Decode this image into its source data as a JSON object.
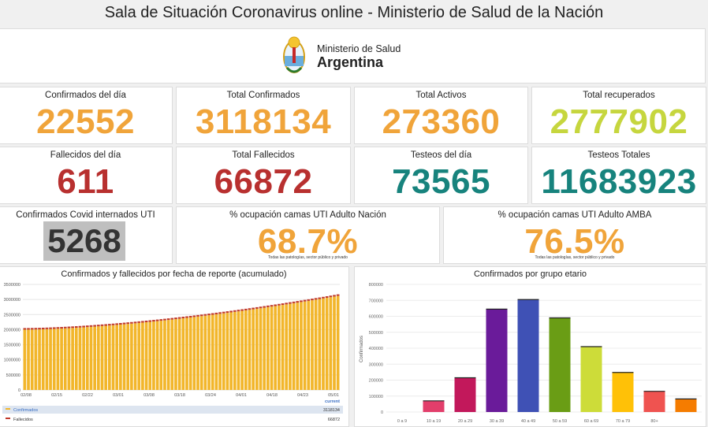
{
  "page_title": "Sala de Situación Coronavirus online - Ministerio de Salud de la Nación",
  "logo": {
    "subtitle": "Ministerio de Salud",
    "country": "Argentina"
  },
  "colors": {
    "orange": "#f0a43a",
    "lime": "#c6d63e",
    "red": "#b8302f",
    "teal": "#17837d",
    "bar_yellow": "#f2b62b",
    "bar_red": "#c0392b"
  },
  "stats": {
    "confirmados_dia": {
      "label": "Confirmados del día",
      "value": "22552"
    },
    "total_confirmados": {
      "label": "Total Confirmados",
      "value": "3118134"
    },
    "total_activos": {
      "label": "Total Activos",
      "value": "273360"
    },
    "total_recuperados": {
      "label": "Total recuperados",
      "value": "2777902"
    },
    "fallecidos_dia": {
      "label": "Fallecidos del día",
      "value": "611"
    },
    "total_fallecidos": {
      "label": "Total Fallecidos",
      "value": "66872"
    },
    "testeos_dia": {
      "label": "Testeos del día",
      "value": "73565"
    },
    "testeos_totales": {
      "label": "Testeos Totales",
      "value": "11683923"
    },
    "uti_internados": {
      "label": "Confirmados Covid internados UTI",
      "value": "5268"
    },
    "uti_nacion": {
      "label": "% ocupación camas UTI Adulto Nación",
      "value": "68.7%",
      "note": "Todas las patologías, sector público y privado"
    },
    "uti_amba": {
      "label": "% ocupación camas UTI Adulto AMBA",
      "value": "76.5%",
      "note": "Todas las patologías, sector público y privado"
    }
  },
  "chart_data": [
    {
      "type": "bar",
      "title": "Confirmados y fallecidos por fecha de reporte (acumulado)",
      "y_ticks": [
        "3500000",
        "3000000",
        "2500000",
        "2000000",
        "1500000",
        "1000000",
        "500000",
        "0"
      ],
      "x_ticks": [
        "02/08",
        "02/15",
        "02/22",
        "03/01",
        "03/08",
        "03/18",
        "03/24",
        "04/01",
        "04/18",
        "04/23",
        "05/01"
      ],
      "ylim": [
        0,
        3500000
      ],
      "series": [
        {
          "name": "Confirmados",
          "start": 2000000,
          "end": 3118134
        },
        {
          "name": "Fallecidos",
          "start": 49000,
          "end": 66872
        }
      ],
      "legend_header": "current",
      "legend": [
        {
          "name": "Confirmados",
          "value": "3118134"
        },
        {
          "name": "Fallecidos",
          "value": "66872"
        }
      ]
    },
    {
      "type": "bar",
      "title": "Confirmados por grupo etario",
      "ylabel": "Confirmados",
      "y_ticks": [
        "800000",
        "700000",
        "600000",
        "500000",
        "400000",
        "300000",
        "200000",
        "100000",
        "0"
      ],
      "ylim": [
        0,
        800000
      ],
      "categories": [
        "0 a 9",
        "10 a 19",
        "20 a 29",
        "30 a 39",
        "40 a 49",
        "50 a 59",
        "60 a 69",
        "70 a 79",
        "80+",
        ""
      ],
      "values": [
        0,
        70000,
        215000,
        645000,
        705000,
        590000,
        410000,
        248000,
        130000,
        82000
      ],
      "colors": [
        "#e5533d",
        "#e23e6b",
        "#c2185b",
        "#6a1b9a",
        "#3f51b5",
        "#6a9d15",
        "#cddc39",
        "#ffc107",
        "#ef5350",
        "#f57c00"
      ]
    }
  ]
}
